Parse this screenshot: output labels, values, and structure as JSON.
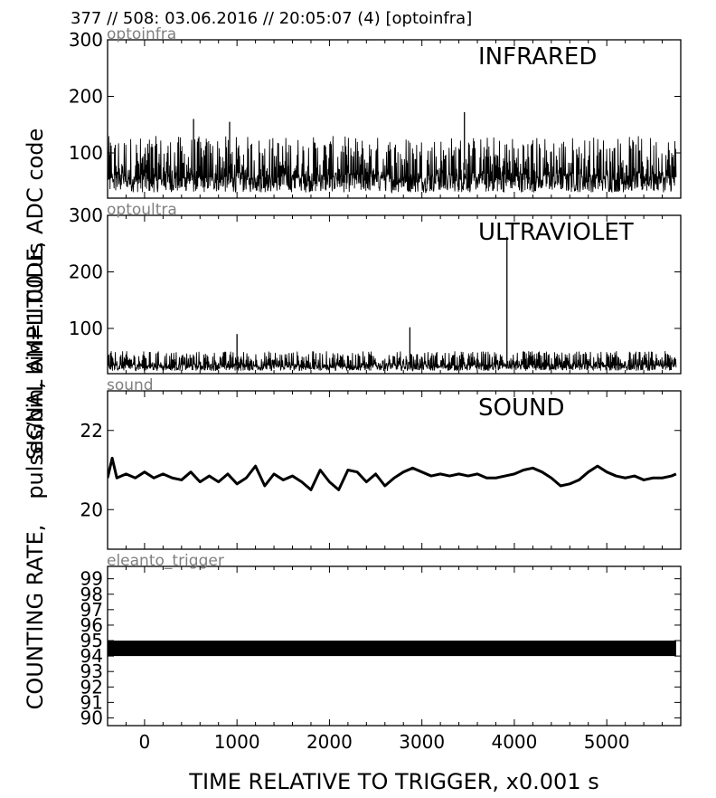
{
  "header": {
    "title": "377 // 508:   03.06.2016 // 20:05:07 (4)  [optoinfra]"
  },
  "axes": {
    "xlabel": "TIME RELATIVE TO TRIGGER,   x0.001 s",
    "ylabel_overlap_1": "SIGNAL AMPLITUDE,   ADC code",
    "ylabel_overlap_2": "pulses/bin, bin=1.00 us",
    "ylabel_bottom": "COUNTING RATE,",
    "xlim": [
      -400,
      5800
    ],
    "xticks": [
      0,
      1000,
      2000,
      3000,
      4000,
      5000
    ],
    "xtick_labels": [
      "0",
      "1000",
      "2000",
      "3000",
      "4000",
      "5000"
    ]
  },
  "chart_data": [
    {
      "type": "line",
      "tag": "optoinfra",
      "title": "INFRARED",
      "ylim": [
        20,
        300
      ],
      "yticks": [
        100,
        200,
        300
      ],
      "ytick_labels": [
        "100",
        "200",
        "300"
      ],
      "x_range": [
        -400,
        5750
      ],
      "baseline": 70,
      "noise_band": [
        30,
        130
      ],
      "peaks": [
        {
          "x": 3460,
          "y": 172
        },
        {
          "x": 530,
          "y": 160
        },
        {
          "x": 920,
          "y": 155
        }
      ]
    },
    {
      "type": "line",
      "tag": "optoultra",
      "title": "ULTRAVIOLET",
      "ylim": [
        20,
        300
      ],
      "yticks": [
        100,
        200,
        300
      ],
      "ytick_labels": [
        "100",
        "200",
        "300"
      ],
      "x_range": [
        -400,
        5750
      ],
      "baseline": 35,
      "noise_band": [
        25,
        60
      ],
      "peaks": [
        {
          "x": 3920,
          "y": 262
        },
        {
          "x": 2870,
          "y": 102
        },
        {
          "x": 1000,
          "y": 90
        }
      ]
    },
    {
      "type": "line",
      "tag": "sound",
      "title": "SOUND",
      "ylim": [
        19,
        23
      ],
      "yticks": [
        20,
        22
      ],
      "ytick_labels": [
        "20",
        "22"
      ],
      "x_range": [
        -400,
        5750
      ],
      "points": [
        [
          -400,
          20.8
        ],
        [
          -350,
          21.3
        ],
        [
          -300,
          20.8
        ],
        [
          -200,
          20.9
        ],
        [
          -100,
          20.8
        ],
        [
          0,
          20.95
        ],
        [
          100,
          20.8
        ],
        [
          200,
          20.9
        ],
        [
          300,
          20.8
        ],
        [
          400,
          20.75
        ],
        [
          500,
          20.95
        ],
        [
          600,
          20.7
        ],
        [
          700,
          20.85
        ],
        [
          800,
          20.7
        ],
        [
          900,
          20.9
        ],
        [
          1000,
          20.65
        ],
        [
          1100,
          20.8
        ],
        [
          1200,
          21.1
        ],
        [
          1300,
          20.6
        ],
        [
          1400,
          20.9
        ],
        [
          1500,
          20.75
        ],
        [
          1600,
          20.85
        ],
        [
          1700,
          20.7
        ],
        [
          1800,
          20.5
        ],
        [
          1900,
          21.0
        ],
        [
          2000,
          20.7
        ],
        [
          2100,
          20.5
        ],
        [
          2200,
          21.0
        ],
        [
          2300,
          20.95
        ],
        [
          2400,
          20.7
        ],
        [
          2500,
          20.9
        ],
        [
          2600,
          20.6
        ],
        [
          2700,
          20.8
        ],
        [
          2800,
          20.95
        ],
        [
          2900,
          21.05
        ],
        [
          3000,
          20.95
        ],
        [
          3100,
          20.85
        ],
        [
          3200,
          20.9
        ],
        [
          3300,
          20.85
        ],
        [
          3400,
          20.9
        ],
        [
          3500,
          20.85
        ],
        [
          3600,
          20.9
        ],
        [
          3700,
          20.8
        ],
        [
          3800,
          20.8
        ],
        [
          3900,
          20.85
        ],
        [
          4000,
          20.9
        ],
        [
          4100,
          21.0
        ],
        [
          4200,
          21.05
        ],
        [
          4300,
          20.95
        ],
        [
          4400,
          20.8
        ],
        [
          4500,
          20.6
        ],
        [
          4600,
          20.65
        ],
        [
          4700,
          20.75
        ],
        [
          4800,
          20.95
        ],
        [
          4900,
          21.1
        ],
        [
          5000,
          20.95
        ],
        [
          5100,
          20.85
        ],
        [
          5200,
          20.8
        ],
        [
          5300,
          20.85
        ],
        [
          5400,
          20.75
        ],
        [
          5500,
          20.8
        ],
        [
          5600,
          20.8
        ],
        [
          5700,
          20.85
        ],
        [
          5750,
          20.9
        ]
      ]
    },
    {
      "type": "line",
      "tag": "eleanto_trigger",
      "title": "",
      "ylim": [
        89.5,
        99.8
      ],
      "yticks": [
        90,
        91,
        92,
        93,
        94,
        95,
        96,
        97,
        98,
        99
      ],
      "ytick_labels": [
        "90",
        "91",
        "92",
        "93",
        "94",
        "95",
        "96",
        "97",
        "98",
        "99"
      ],
      "x_range": [
        -400,
        5750
      ],
      "band": [
        94.0,
        95.0
      ]
    }
  ],
  "colors": {
    "trace": "#000000",
    "tag": "#808080",
    "frame": "#000000",
    "background": "#ffffff"
  }
}
